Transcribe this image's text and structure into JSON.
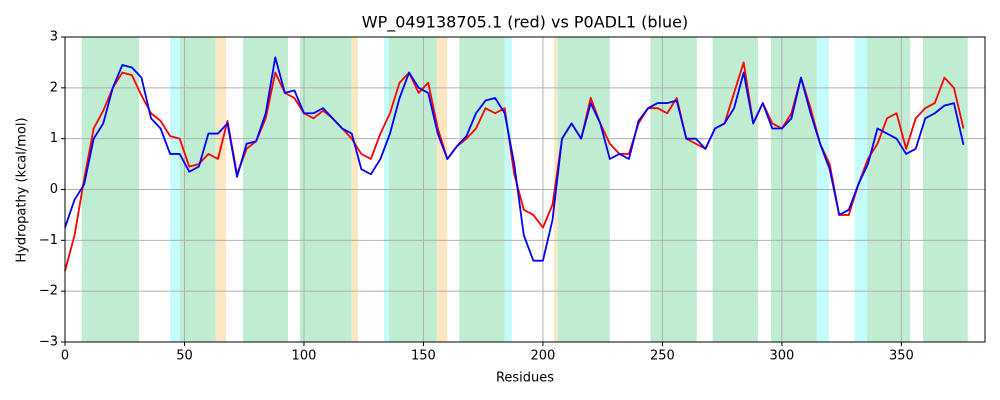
{
  "chart_data": {
    "type": "line",
    "title": "WP_049138705.1 (red) vs P0ADL1 (blue)",
    "x_label": "Residues",
    "y_label": "Hydropathy (kcal/mol)",
    "xlim": [
      0,
      385
    ],
    "ylim": [
      -3,
      3
    ],
    "xticks": [
      0,
      50,
      100,
      150,
      200,
      250,
      300,
      350
    ],
    "yticks": [
      {
        "value": -3,
        "label": "−3"
      },
      {
        "value": -2,
        "label": "−2"
      },
      {
        "value": -1,
        "label": "−1"
      },
      0,
      1,
      2,
      3
    ],
    "grid": true,
    "spans": [
      {
        "start": 7,
        "end": 31,
        "color": "#c0ecd2"
      },
      {
        "start": 48,
        "end": 63,
        "color": "#c0ecd2"
      },
      {
        "start": 74.5,
        "end": 93.3,
        "color": "#c0ecd2"
      },
      {
        "start": 98.3,
        "end": 120,
        "color": "#c0ecd2"
      },
      {
        "start": 135.6,
        "end": 155.6,
        "color": "#c0ecd2"
      },
      {
        "start": 165,
        "end": 184,
        "color": "#c0ecd2"
      },
      {
        "start": 206,
        "end": 228,
        "color": "#c0ecd2"
      },
      {
        "start": 245,
        "end": 264.4,
        "color": "#c0ecd2"
      },
      {
        "start": 271,
        "end": 290,
        "color": "#c0ecd2"
      },
      {
        "start": 295.4,
        "end": 314.6,
        "color": "#c0ecd2"
      },
      {
        "start": 335.6,
        "end": 353.6,
        "color": "#c0ecd2"
      },
      {
        "start": 359,
        "end": 377.8,
        "color": "#c0ecd2"
      },
      {
        "start": 44,
        "end": 48,
        "color": "#c4fbfb"
      },
      {
        "start": 133.5,
        "end": 135.6,
        "color": "#c4fbfb"
      },
      {
        "start": 184,
        "end": 187,
        "color": "#c4fbfb"
      },
      {
        "start": 314.6,
        "end": 319.7,
        "color": "#c4fbfb"
      },
      {
        "start": 330.5,
        "end": 335.6,
        "color": "#c4fbfb"
      },
      {
        "start": 63,
        "end": 67.4,
        "color": "#fde6c2"
      },
      {
        "start": 120,
        "end": 122.6,
        "color": "#fde6c2"
      },
      {
        "start": 155.6,
        "end": 160,
        "color": "#fde6c2"
      },
      {
        "start": 204.6,
        "end": 206,
        "color": "#fde6c2"
      }
    ],
    "x": [
      0,
      4,
      8,
      12,
      16,
      20,
      24,
      28,
      32,
      36,
      40,
      44,
      48,
      52,
      56,
      60,
      64,
      68,
      72,
      76,
      80,
      84,
      88,
      92,
      96,
      100,
      104,
      108,
      112,
      116,
      120,
      124,
      128,
      132,
      136,
      140,
      144,
      148,
      152,
      156,
      160,
      164,
      168,
      172,
      176,
      180,
      184,
      188,
      192,
      196,
      200,
      204,
      208,
      212,
      216,
      220,
      224,
      228,
      232,
      236,
      240,
      244,
      248,
      252,
      256,
      260,
      264,
      268,
      272,
      276,
      280,
      284,
      288,
      292,
      296,
      300,
      304,
      308,
      312,
      316,
      320,
      324,
      328,
      332,
      336,
      340,
      344,
      348,
      352,
      356,
      360,
      364,
      368,
      372,
      376
    ],
    "series": [
      {
        "color": "#ff0000",
        "values": [
          -1.6,
          -0.9,
          0.2,
          1.2,
          1.55,
          2.0,
          2.3,
          2.25,
          1.85,
          1.5,
          1.35,
          1.05,
          1.0,
          0.45,
          0.5,
          0.7,
          0.6,
          1.35,
          0.3,
          0.8,
          0.95,
          1.4,
          2.3,
          1.9,
          1.8,
          1.5,
          1.4,
          1.55,
          1.4,
          1.2,
          1.0,
          0.7,
          0.6,
          1.1,
          1.5,
          2.1,
          2.3,
          1.9,
          2.1,
          1.2,
          0.6,
          0.85,
          1.0,
          1.2,
          1.6,
          1.5,
          1.6,
          0.3,
          -0.4,
          -0.5,
          -0.75,
          -0.3,
          1.0,
          1.3,
          1.0,
          1.8,
          1.3,
          0.9,
          0.7,
          0.7,
          1.3,
          1.6,
          1.6,
          1.5,
          1.8,
          1.0,
          0.9,
          0.8,
          1.2,
          1.3,
          1.9,
          2.5,
          1.3,
          1.7,
          1.3,
          1.2,
          1.5,
          2.2,
          1.6,
          0.9,
          0.5,
          -0.5,
          -0.5,
          0.1,
          0.6,
          0.9,
          1.4,
          1.5,
          0.8,
          1.4,
          1.6,
          1.7,
          2.2,
          2.0,
          1.2
        ]
      },
      {
        "color": "#0000ff",
        "values": [
          -0.75,
          -0.2,
          0.1,
          1.0,
          1.3,
          2.0,
          2.45,
          2.4,
          2.2,
          1.4,
          1.2,
          0.7,
          0.7,
          0.35,
          0.45,
          1.1,
          1.1,
          1.3,
          0.25,
          0.9,
          0.95,
          1.5,
          2.6,
          1.9,
          1.95,
          1.5,
          1.5,
          1.6,
          1.4,
          1.2,
          1.1,
          0.4,
          0.3,
          0.6,
          1.1,
          1.8,
          2.3,
          2.0,
          1.9,
          1.1,
          0.6,
          0.85,
          1.05,
          1.5,
          1.75,
          1.8,
          1.5,
          0.5,
          -0.9,
          -1.4,
          -1.4,
          -0.6,
          1.0,
          1.3,
          1.0,
          1.7,
          1.3,
          0.6,
          0.7,
          0.6,
          1.35,
          1.6,
          1.7,
          1.7,
          1.75,
          1.0,
          1.0,
          0.8,
          1.2,
          1.3,
          1.6,
          2.3,
          1.3,
          1.7,
          1.2,
          1.2,
          1.4,
          2.2,
          1.5,
          0.9,
          0.4,
          -0.5,
          -0.4,
          0.1,
          0.5,
          1.2,
          1.1,
          1.0,
          0.7,
          0.8,
          1.4,
          1.5,
          1.65,
          1.7,
          0.88
        ]
      }
    ]
  }
}
